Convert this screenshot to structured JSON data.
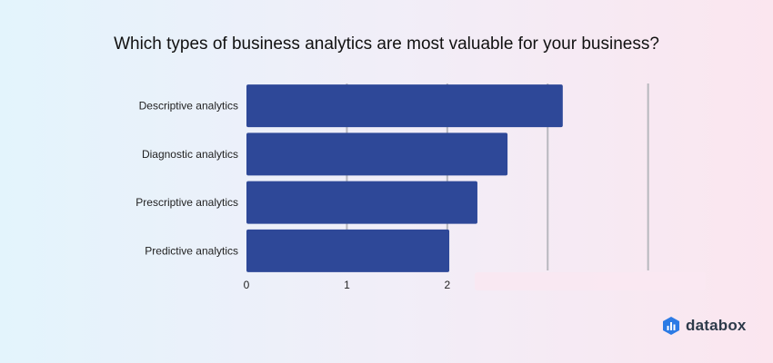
{
  "chart_data": {
    "type": "bar",
    "orientation": "horizontal",
    "title": "Which types of business analytics are most valuable for your business?",
    "categories": [
      "Descriptive analytics",
      "Diagnostic analytics",
      "Prescriptive analytics",
      "Predictive analytics"
    ],
    "values": [
      3.15,
      2.6,
      2.3,
      2.02
    ],
    "xlim": [
      0,
      4.8
    ],
    "x_ticks": [
      "0",
      "1",
      "2"
    ],
    "x_tick_values": [
      0,
      1,
      2
    ],
    "gridlines_at": [
      1,
      2,
      3,
      4
    ],
    "grid": true,
    "bar_color": "#2e4898"
  },
  "brand": {
    "name": "databox",
    "icon": "databox-logo-icon",
    "color": "#2c7be5"
  }
}
